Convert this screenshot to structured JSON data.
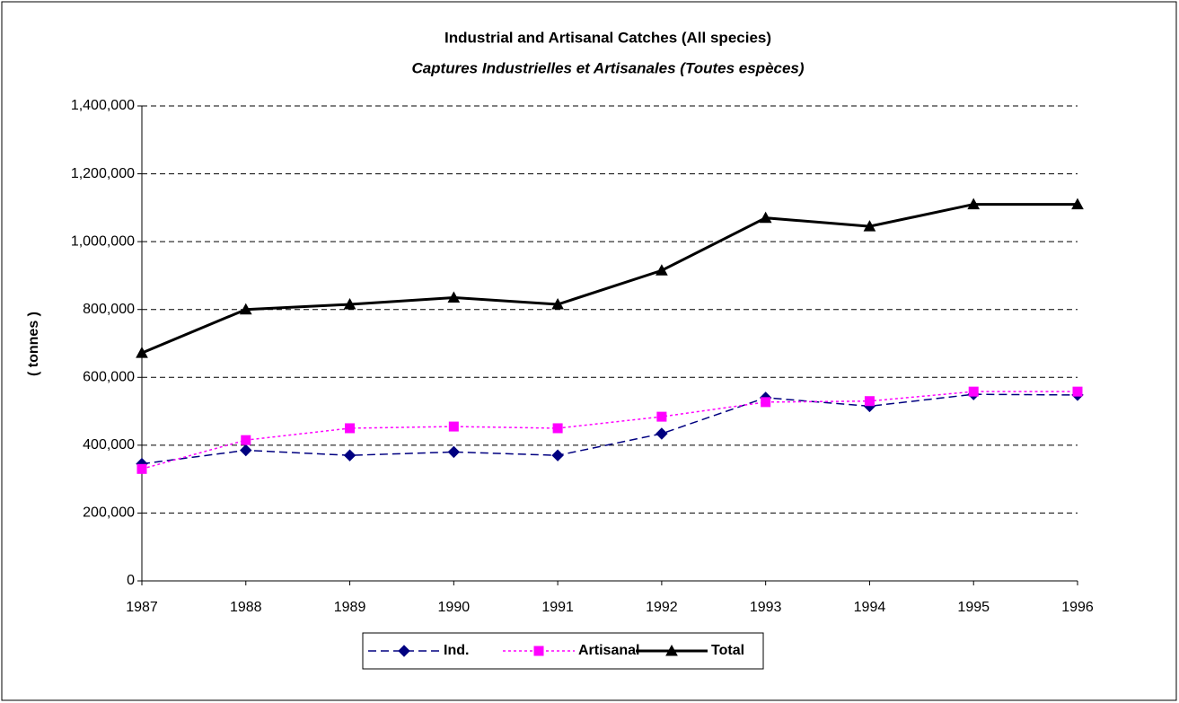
{
  "chart_data": {
    "type": "line",
    "title": "Industrial and Artisanal Catches (All species)",
    "subtitle": "Captures Industrielles et Artisanales (Toutes espèces)",
    "y_label": "( tonnes )",
    "categories": [
      "1987",
      "1988",
      "1989",
      "1990",
      "1991",
      "1992",
      "1993",
      "1994",
      "1995",
      "1996"
    ],
    "series": [
      {
        "name": "Ind.",
        "color": "#000080",
        "marker": "diamond",
        "line_style": "dashed",
        "values": [
          345000,
          385000,
          370000,
          380000,
          370000,
          434000,
          540000,
          515000,
          550000,
          548000
        ]
      },
      {
        "name": "Artisanal",
        "color": "#ff00ff",
        "marker": "square",
        "line_style": "dotted",
        "values": [
          330000,
          415000,
          450000,
          455000,
          450000,
          484000,
          527000,
          530000,
          558000,
          558000
        ]
      },
      {
        "name": "Total",
        "color": "#000000",
        "marker": "triangle",
        "line_style": "solid",
        "values": [
          672000,
          800000,
          815000,
          835000,
          815000,
          915000,
          1070000,
          1045000,
          1110000,
          1110000
        ]
      }
    ],
    "ylim": [
      0,
      1400000
    ],
    "yticks": [
      0,
      {
        "value": 200000,
        "label": "200,000"
      },
      {
        "value": 400000,
        "label": "400,000"
      },
      {
        "value": 600000,
        "label": "600,000"
      },
      {
        "value": 800000,
        "label": "800,000"
      },
      {
        "value": 1000000,
        "label": "1,000,000"
      },
      {
        "value": 1200000,
        "label": "1,200,000"
      },
      {
        "value": 1400000,
        "label": "1,400,000"
      }
    ],
    "grid": true,
    "legend": "bottom"
  }
}
